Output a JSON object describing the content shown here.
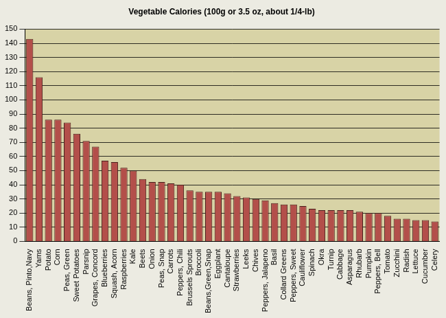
{
  "chart_data": {
    "type": "bar",
    "title": "Vegetable Calories (100g or 3.5 oz, about 1/4-lb)",
    "categories": [
      "Beans, Pinto,Navy",
      "Yams",
      "Potato",
      "Corn",
      "Peas, Green",
      "Sweet Potatoes",
      "Parsnip",
      "Grapes, Concord",
      "Blueberries",
      "Squash, Acorn",
      "Raspberries",
      "Kale",
      "Beets",
      "Onion",
      "Peas, Snap",
      "Carrots",
      "Peppers, Chili",
      "Brussels Sprouts",
      "Broccoli",
      "Beans,Green,Snap",
      "Eggplant",
      "Cantaloupe",
      "Strawberries",
      "Leeks",
      "Chives",
      "Peppers, Jalapeno",
      "Basil",
      "Collard Greens",
      "Peppers, Sweet",
      "Cauliflower",
      "Spinach",
      "Okra",
      "Turnip",
      "Cabbage",
      "Asparagus",
      "Rhubarb",
      "Pumpkin",
      "Peppers, Bell",
      "Tomato",
      "Zucchini",
      "Radish",
      "Lettuce",
      "Cucumber",
      "Celery"
    ],
    "values": [
      143,
      116,
      86,
      86,
      84,
      76,
      71,
      67,
      57,
      56,
      52,
      50,
      44,
      42,
      42,
      41,
      40,
      36,
      35,
      35,
      35,
      34,
      32,
      31,
      30,
      29,
      27,
      26,
      26,
      25,
      23,
      22,
      22,
      22,
      22,
      21,
      20,
      20,
      18,
      16,
      16,
      15,
      15,
      14
    ],
    "color": "#b34f4a",
    "ylim": [
      0,
      150
    ],
    "yticks": [
      0,
      10,
      20,
      30,
      40,
      50,
      60,
      70,
      80,
      90,
      100,
      110,
      120,
      130,
      140,
      150
    ],
    "grid": true
  }
}
